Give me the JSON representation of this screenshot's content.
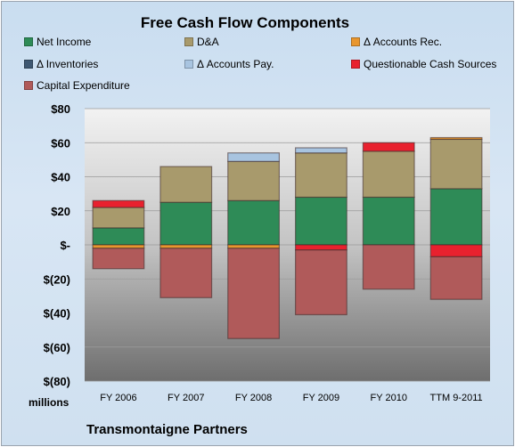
{
  "chart_data": {
    "type": "bar",
    "stacked": true,
    "title": "Free Cash Flow Components",
    "units_label": "millions",
    "footer_label": "Transmontaigne Partners",
    "categories": [
      "FY 2006",
      "FY 2007",
      "FY 2008",
      "FY 2009",
      "FY 2010",
      "TTM 9-2011"
    ],
    "ylim": [
      -80,
      80
    ],
    "yticks": [
      80,
      60,
      40,
      20,
      0,
      -20,
      -40,
      -60,
      -80
    ],
    "ytick_labels": [
      "$80",
      "$60",
      "$40",
      "$20",
      "$-",
      "$(20)",
      "$(40)",
      "$(60)",
      "$(80)"
    ],
    "grid": true,
    "legend_position": "top",
    "series": [
      {
        "name": "Net Income",
        "color": "#2e8b57",
        "values": [
          10,
          25,
          26,
          28,
          28,
          33
        ]
      },
      {
        "name": "D&A",
        "color": "#a89a6c",
        "values": [
          12,
          21,
          23,
          26,
          27,
          29
        ]
      },
      {
        "name": "Δ Accounts Rec.",
        "color": "#e8962e",
        "values": [
          -2,
          -2,
          -2,
          0,
          0,
          1
        ]
      },
      {
        "name": "Δ Inventories",
        "color": "#3f5872",
        "values": [
          0,
          0,
          0,
          0,
          0,
          0
        ]
      },
      {
        "name": "Δ Accounts Pay.",
        "color": "#a8c4e0",
        "values": [
          0,
          0,
          5,
          3,
          0,
          0
        ]
      },
      {
        "name": "Questionable Cash Sources",
        "color": "#e8212e",
        "values": [
          4,
          0,
          0,
          -3,
          5,
          -7
        ]
      },
      {
        "name": "Capital Expenditure",
        "color": "#b05a5a",
        "values": [
          -12,
          -29,
          -53,
          -38,
          -26,
          -25
        ]
      }
    ]
  }
}
